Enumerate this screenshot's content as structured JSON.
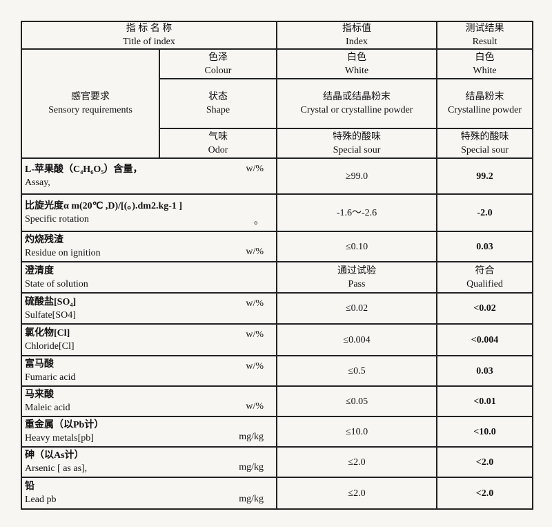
{
  "header": {
    "title_cn": "指 标 名 称",
    "title_en": "Title of index",
    "index_cn": "指标值",
    "index_en": "Index",
    "result_cn": "测试结果",
    "result_en": "Result"
  },
  "sensory": {
    "label_cn": "感官要求",
    "label_en": "Sensory requirements",
    "rows": [
      {
        "cn": "色泽",
        "en": "Colour",
        "index_cn": "白色",
        "index_en": "White",
        "result_cn": "白色",
        "result_en": "White"
      },
      {
        "cn": "状态",
        "en": "Shape",
        "index_cn": "结晶或结晶粉末",
        "index_en": "Crystal or crystalline powder",
        "result_cn": "结晶粉末",
        "result_en": "Crystalline powder"
      },
      {
        "cn": "气味",
        "en": "Odor",
        "index_cn": "特殊的酸味",
        "index_en": "Special sour",
        "result_cn": "特殊的酸味",
        "result_en": "Special sour"
      }
    ]
  },
  "items": [
    {
      "cn": "L-苹果酸（C₄H₆O₅）含量，",
      "en": "Assay,",
      "unit": "w/%",
      "unit_pos": "top",
      "index": "≥99.0",
      "result": "99.2"
    },
    {
      "cn": "比旋光度α m(20℃ ,D)/[(。).dm2.kg-1 ]",
      "en": "Specific rotation",
      "unit": "。",
      "unit_pos": "bottom",
      "index": "-1.6～-2.6",
      "result": "-2.0"
    },
    {
      "cn": "灼烧残渣",
      "en": "Residue on  ignition",
      "unit": "w/%",
      "unit_pos": "bottom",
      "index": "≤0.10",
      "result": "0.03"
    },
    {
      "cn": "澄清度",
      "en": "State of solution",
      "unit": "",
      "unit_pos": "top",
      "index": "通过试验",
      "index_en": "Pass",
      "result": "符合",
      "result_en": "Qualified"
    },
    {
      "cn": "硫酸盐[SO₄]",
      "en": "Sulfate[SO4]",
      "unit": "w/%",
      "unit_pos": "top",
      "index": "≤0.02",
      "result": "<0.02"
    },
    {
      "cn": "氯化物[Cl]",
      "en": "Chloride[Cl]",
      "unit": "w/%",
      "unit_pos": "top",
      "index": "≤0.004",
      "result": "<0.004"
    },
    {
      "cn": "富马酸",
      "en": "Fumaric acid",
      "unit": "w/%",
      "unit_pos": "top",
      "index": "≤0.5",
      "result": "0.03"
    },
    {
      "cn": "马来酸",
      "en": "Maleic acid",
      "unit": "w/%",
      "unit_pos": "bottom",
      "index": "≤0.05",
      "result": "<0.01"
    },
    {
      "cn": "重金属（以Pb计）",
      "en": "Heavy metals[pb]",
      "unit": "mg/kg",
      "unit_pos": "bottom",
      "index": "≤10.0",
      "result": "<10.0"
    },
    {
      "cn": "砷（以As计）",
      "en": "Arsenic [ as as],",
      "unit": "mg/kg",
      "unit_pos": "bottom",
      "index": "≤2.0",
      "result": "<2.0"
    },
    {
      "cn": "铅",
      "en": "Lead pb",
      "unit": "mg/kg",
      "unit_pos": "bottom",
      "index": "≤2.0",
      "result": "<2.0"
    }
  ]
}
